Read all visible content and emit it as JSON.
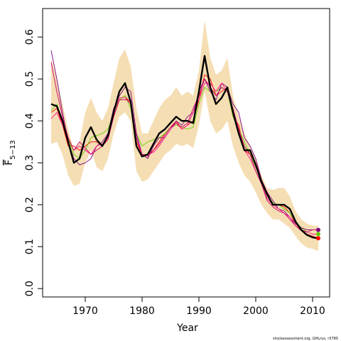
{
  "chart_data": {
    "type": "line",
    "xlabel": "Year",
    "ylabel": "F",
    "ylabel_subscript": "5−13",
    "xlim": [
      1962.5,
      2013
    ],
    "ylim": [
      -0.02,
      0.668
    ],
    "x_ticks": [
      1970,
      1980,
      1990,
      2000,
      2010
    ],
    "y_ticks": [
      0.0,
      0.1,
      0.2,
      0.3,
      0.4,
      0.5,
      0.6
    ],
    "y_tick_labels": [
      "0.0",
      "0.1",
      "0.2",
      "0.3",
      "0.4",
      "0.5",
      "0.6"
    ],
    "x": [
      1964,
      1965,
      1966,
      1967,
      1968,
      1969,
      1970,
      1971,
      1972,
      1973,
      1974,
      1975,
      1976,
      1977,
      1978,
      1979,
      1980,
      1981,
      1982,
      1983,
      1984,
      1985,
      1986,
      1987,
      1988,
      1989,
      1990,
      1991,
      1992,
      1993,
      1994,
      1995,
      1996,
      1997,
      1998,
      1999,
      2000,
      2001,
      2002,
      2003,
      2004,
      2005,
      2006,
      2007,
      2008,
      2009,
      2010,
      2011
    ],
    "band": {
      "color": "#f5deb3",
      "upper": [
        0.55,
        0.5,
        0.44,
        0.38,
        0.33,
        0.35,
        0.42,
        0.455,
        0.42,
        0.4,
        0.43,
        0.49,
        0.55,
        0.57,
        0.53,
        0.43,
        0.37,
        0.37,
        0.4,
        0.43,
        0.45,
        0.46,
        0.48,
        0.46,
        0.47,
        0.46,
        0.52,
        0.64,
        0.55,
        0.51,
        0.52,
        0.55,
        0.46,
        0.41,
        0.37,
        0.34,
        0.31,
        0.27,
        0.24,
        0.235,
        0.24,
        0.24,
        0.22,
        0.185,
        0.165,
        0.155,
        0.15,
        0.15
      ],
      "lower": [
        0.345,
        0.35,
        0.32,
        0.27,
        0.245,
        0.25,
        0.3,
        0.33,
        0.29,
        0.28,
        0.31,
        0.37,
        0.41,
        0.42,
        0.4,
        0.28,
        0.255,
        0.26,
        0.28,
        0.3,
        0.32,
        0.33,
        0.345,
        0.34,
        0.345,
        0.335,
        0.39,
        0.47,
        0.4,
        0.37,
        0.38,
        0.4,
        0.34,
        0.3,
        0.27,
        0.255,
        0.23,
        0.2,
        0.18,
        0.165,
        0.165,
        0.155,
        0.145,
        0.125,
        0.108,
        0.098,
        0.095,
        0.09
      ]
    },
    "series": [
      {
        "color": "#000000",
        "width": 2.4,
        "values": [
          0.44,
          0.435,
          0.4,
          0.35,
          0.3,
          0.31,
          0.36,
          0.385,
          0.355,
          0.34,
          0.365,
          0.42,
          0.47,
          0.49,
          0.445,
          0.34,
          0.315,
          0.32,
          0.345,
          0.37,
          0.38,
          0.395,
          0.41,
          0.4,
          0.4,
          0.395,
          0.47,
          0.555,
          0.48,
          0.44,
          0.455,
          0.48,
          0.42,
          0.37,
          0.33,
          0.33,
          0.295,
          0.255,
          0.225,
          0.2,
          0.2,
          0.2,
          0.19,
          0.16,
          0.14,
          0.128,
          0.122,
          0.12
        ],
        "end_marker": false
      },
      {
        "color": "#ff0000",
        "width": 0.9,
        "values": [
          0.42,
          0.43,
          0.39,
          0.34,
          0.34,
          0.33,
          0.34,
          0.35,
          0.35,
          0.34,
          0.36,
          0.41,
          0.45,
          0.46,
          0.44,
          0.35,
          0.32,
          0.32,
          0.33,
          0.35,
          0.37,
          0.385,
          0.4,
          0.38,
          0.39,
          0.4,
          0.45,
          0.51,
          0.5,
          0.46,
          0.47,
          0.48,
          0.41,
          0.39,
          0.33,
          0.32,
          0.3,
          0.26,
          0.23,
          0.2,
          0.2,
          0.195,
          0.18,
          0.155,
          0.14,
          0.13,
          0.125,
          0.12
        ],
        "end_marker": true
      },
      {
        "color": "#66cc00",
        "width": 0.9,
        "values": [
          0.425,
          0.44,
          0.4,
          0.36,
          0.32,
          0.31,
          0.33,
          0.36,
          0.365,
          0.37,
          0.38,
          0.42,
          0.45,
          0.46,
          0.43,
          0.37,
          0.34,
          0.35,
          0.355,
          0.36,
          0.37,
          0.385,
          0.39,
          0.385,
          0.38,
          0.385,
          0.44,
          0.48,
          0.47,
          0.47,
          0.48,
          0.47,
          0.41,
          0.38,
          0.35,
          0.32,
          0.29,
          0.255,
          0.22,
          0.205,
          0.2,
          0.19,
          0.18,
          0.16,
          0.145,
          0.135,
          0.13,
          0.13
        ],
        "end_marker": true
      },
      {
        "color": "#800080",
        "width": 0.9,
        "values": [
          0.568,
          0.5,
          0.42,
          0.35,
          0.31,
          0.295,
          0.3,
          0.31,
          0.34,
          0.35,
          0.37,
          0.43,
          0.46,
          0.48,
          0.47,
          0.37,
          0.32,
          0.31,
          0.34,
          0.36,
          0.36,
          0.38,
          0.4,
          0.39,
          0.41,
          0.42,
          0.47,
          0.5,
          0.47,
          0.45,
          0.49,
          0.48,
          0.44,
          0.42,
          0.36,
          0.34,
          0.31,
          0.26,
          0.23,
          0.21,
          0.19,
          0.185,
          0.17,
          0.155,
          0.145,
          0.14,
          0.14,
          0.14
        ],
        "end_marker": true
      },
      {
        "color": "#ff1493",
        "width": 0.9,
        "values": [
          0.405,
          0.42,
          0.39,
          0.36,
          0.33,
          0.34,
          0.33,
          0.32,
          0.34,
          0.345,
          0.36,
          0.42,
          0.455,
          0.455,
          0.44,
          0.36,
          0.32,
          0.32,
          0.325,
          0.34,
          0.36,
          0.38,
          0.395,
          0.38,
          0.39,
          0.42,
          0.45,
          0.49,
          0.49,
          0.47,
          0.49,
          0.47,
          0.42,
          0.38,
          0.33,
          0.31,
          0.28,
          0.25,
          0.215,
          0.2,
          0.19,
          0.18,
          0.17,
          0.15,
          0.14,
          0.135,
          0.13,
          0.13
        ],
        "end_marker": false
      },
      {
        "color": "#cc0066",
        "width": 0.9,
        "values": [
          0.54,
          0.47,
          0.41,
          0.36,
          0.33,
          0.35,
          0.335,
          0.32,
          0.33,
          0.34,
          0.355,
          0.41,
          0.45,
          0.45,
          0.45,
          0.36,
          0.32,
          0.315,
          0.33,
          0.345,
          0.365,
          0.385,
          0.395,
          0.385,
          0.395,
          0.43,
          0.46,
          0.5,
          0.48,
          0.46,
          0.48,
          0.47,
          0.43,
          0.38,
          0.34,
          0.32,
          0.28,
          0.25,
          0.21,
          0.195,
          0.185,
          0.18,
          0.165,
          0.15,
          0.138,
          0.135,
          0.14,
          0.14
        ],
        "end_marker": false
      }
    ]
  },
  "credit": "stockassessment.org, GHLrus, r3785"
}
